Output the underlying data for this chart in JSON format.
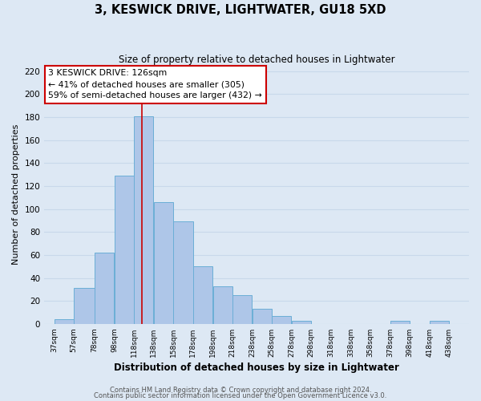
{
  "title": "3, KESWICK DRIVE, LIGHTWATER, GU18 5XD",
  "subtitle": "Size of property relative to detached houses in Lightwater",
  "xlabel": "Distribution of detached houses by size in Lightwater",
  "ylabel": "Number of detached properties",
  "bar_left_edges": [
    37,
    57,
    78,
    98,
    118,
    138,
    158,
    178,
    198,
    218,
    238,
    258,
    278,
    298,
    318,
    338,
    358,
    378,
    398,
    418
  ],
  "bar_widths": [
    20,
    21,
    20,
    20,
    20,
    20,
    20,
    20,
    20,
    20,
    20,
    20,
    20,
    20,
    20,
    20,
    20,
    20,
    20,
    20
  ],
  "bar_heights": [
    4,
    31,
    62,
    129,
    181,
    106,
    89,
    50,
    33,
    25,
    13,
    7,
    3,
    0,
    0,
    0,
    0,
    3,
    0,
    3
  ],
  "bar_color": "#aec6e8",
  "bar_edgecolor": "#6baed6",
  "tick_labels": [
    "37sqm",
    "57sqm",
    "78sqm",
    "98sqm",
    "118sqm",
    "138sqm",
    "158sqm",
    "178sqm",
    "198sqm",
    "218sqm",
    "238sqm",
    "258sqm",
    "278sqm",
    "298sqm",
    "318sqm",
    "338sqm",
    "358sqm",
    "378sqm",
    "398sqm",
    "418sqm",
    "438sqm"
  ],
  "tick_positions": [
    37,
    57,
    78,
    98,
    118,
    138,
    158,
    178,
    198,
    218,
    238,
    258,
    278,
    298,
    318,
    338,
    358,
    378,
    398,
    418,
    438
  ],
  "yticks": [
    0,
    20,
    40,
    60,
    80,
    100,
    120,
    140,
    160,
    180,
    200,
    220
  ],
  "ylim": [
    0,
    225
  ],
  "xlim": [
    27,
    458
  ],
  "red_line_x": 126,
  "annotation_text": "3 KESWICK DRIVE: 126sqm\n← 41% of detached houses are smaller (305)\n59% of semi-detached houses are larger (432) →",
  "annotation_box_facecolor": "#ffffff",
  "annotation_box_edgecolor": "#cc0000",
  "grid_color": "#c8d8ea",
  "bg_color": "#dde8f4",
  "footnote1": "Contains HM Land Registry data © Crown copyright and database right 2024.",
  "footnote2": "Contains public sector information licensed under the Open Government Licence v3.0."
}
